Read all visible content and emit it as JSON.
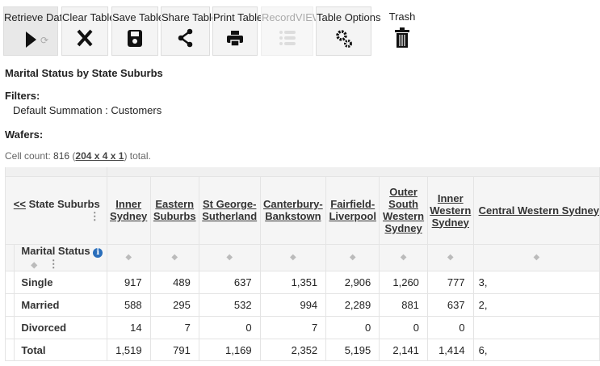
{
  "toolbar": {
    "retrieve": "Retrieve Data",
    "clear": "Clear Table",
    "save": "Save Table",
    "share": "Share Table",
    "print": "Print Table",
    "record": "RecordVIEW",
    "options": "Table Options",
    "trash": "Trash"
  },
  "report": {
    "title": "Marital Status by State Suburbs",
    "filters_label": "Filters:",
    "filter": "Default Summation : Customers",
    "wafers_label": "Wafers:",
    "cell_count_prefix": "Cell count: ",
    "cell_count": "816",
    "dims": "204 x 4 x 1",
    "cell_count_suffix": " total."
  },
  "table": {
    "column_dimension": "State Suburbs",
    "back_link": "<<",
    "row_dimension": "Marital Status",
    "columns": [
      "Inner Sydney",
      "Eastern Suburbs",
      "St George-Sutherland",
      "Canterbury-Bankstown",
      "Fairfield-Liverpool",
      "Outer South Western Sydney",
      "Inner Western Sydney",
      "Central Western Sydney"
    ],
    "rows": [
      {
        "label": "Single",
        "values": [
          "917",
          "489",
          "637",
          "1,351",
          "2,906",
          "1,260",
          "777",
          "3,"
        ]
      },
      {
        "label": "Married",
        "values": [
          "588",
          "295",
          "532",
          "994",
          "2,289",
          "881",
          "637",
          "2,"
        ]
      },
      {
        "label": "Divorced",
        "values": [
          "14",
          "7",
          "0",
          "7",
          "0",
          "0",
          "0",
          ""
        ]
      },
      {
        "label": "Total",
        "values": [
          "1,519",
          "791",
          "1,169",
          "2,352",
          "5,195",
          "2,141",
          "1,414",
          "6,"
        ]
      }
    ]
  }
}
